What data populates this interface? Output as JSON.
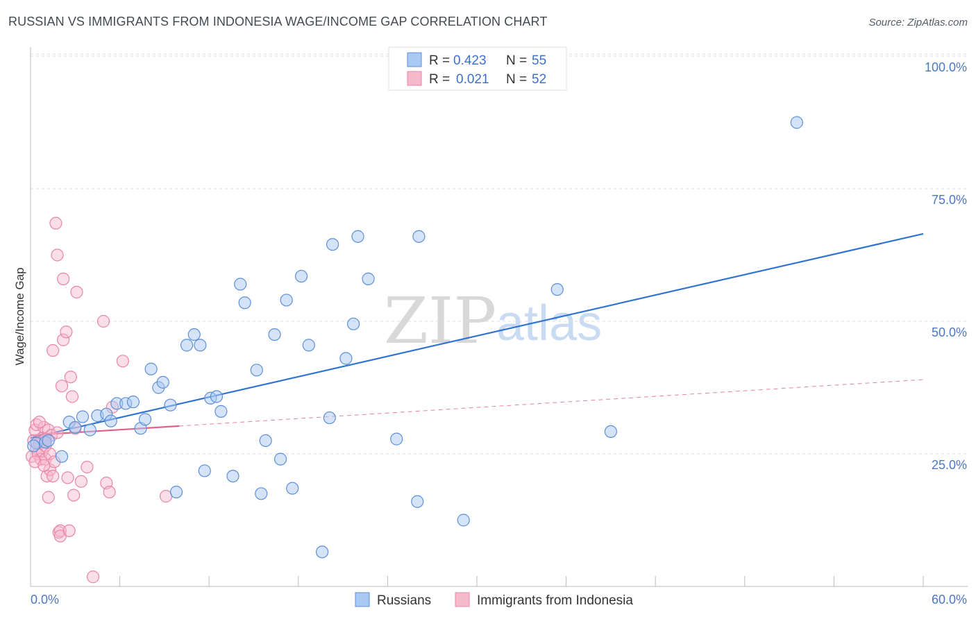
{
  "title": "RUSSIAN VS IMMIGRANTS FROM INDONESIA WAGE/INCOME GAP CORRELATION CHART",
  "source": "Source: ZipAtlas.com",
  "colors": {
    "blue_fill": "#a9c8f2",
    "blue_stroke": "#5b8fd8",
    "blue_line": "#2f74d0",
    "pink_fill": "#f6b8cb",
    "pink_stroke": "#e884a6",
    "pink_line": "#e0608c",
    "grid": "#dddddd",
    "tick_label": "#4a78c4"
  },
  "watermark": {
    "zip": "ZIP",
    "atlas": "atlas"
  },
  "legend": {
    "rows": [
      {
        "r_label": "R =",
        "r_value": "0.423",
        "n_label": "N =",
        "n_value": "55"
      },
      {
        "r_label": "R =",
        "r_value": "0.021",
        "n_label": "N =",
        "n_value": "52"
      }
    ]
  },
  "bottom_legend": {
    "series1": "Russians",
    "series2": "Immigrants from Indonesia"
  },
  "chart_data": {
    "type": "scatter",
    "title": "RUSSIAN VS IMMIGRANTS FROM INDONESIA WAGE/INCOME GAP CORRELATION CHART",
    "xlabel": "",
    "ylabel": "Wage/Income Gap",
    "xlim": [
      0,
      60
    ],
    "ylim": [
      0,
      105
    ],
    "x_tick_labels": [
      "0.0%",
      "60.0%"
    ],
    "y_ticks": [
      25,
      50,
      75,
      100
    ],
    "y_tick_labels": [
      "25.0%",
      "50.0%",
      "75.0%",
      "100.0%"
    ],
    "grid": true,
    "legend_position": "top-center",
    "series": [
      {
        "name": "Russians",
        "r": 0.423,
        "n": 55,
        "trend": {
          "x": [
            0,
            60
          ],
          "y": [
            28.0,
            66.5
          ],
          "style": "solid"
        },
        "points": [
          [
            0.4,
            27.0
          ],
          [
            1.0,
            27.2
          ],
          [
            1.2,
            27.5
          ],
          [
            2.1,
            24.5
          ],
          [
            2.6,
            31.0
          ],
          [
            3.0,
            30.0
          ],
          [
            3.5,
            32.0
          ],
          [
            4.0,
            29.5
          ],
          [
            4.5,
            32.2
          ],
          [
            5.1,
            32.5
          ],
          [
            5.4,
            31.2
          ],
          [
            5.8,
            34.5
          ],
          [
            6.4,
            34.5
          ],
          [
            6.9,
            34.8
          ],
          [
            7.4,
            29.8
          ],
          [
            7.7,
            31.5
          ],
          [
            8.1,
            41.0
          ],
          [
            8.6,
            37.5
          ],
          [
            8.9,
            38.5
          ],
          [
            9.4,
            34.2
          ],
          [
            9.8,
            17.8
          ],
          [
            10.5,
            45.5
          ],
          [
            11.0,
            47.5
          ],
          [
            11.4,
            45.5
          ],
          [
            11.7,
            21.8
          ],
          [
            12.1,
            35.5
          ],
          [
            12.5,
            35.8
          ],
          [
            12.8,
            33.0
          ],
          [
            13.6,
            20.8
          ],
          [
            14.1,
            57.0
          ],
          [
            14.4,
            53.5
          ],
          [
            15.2,
            40.8
          ],
          [
            15.5,
            17.5
          ],
          [
            15.8,
            27.5
          ],
          [
            16.4,
            47.5
          ],
          [
            16.8,
            24.0
          ],
          [
            17.2,
            54.0
          ],
          [
            17.6,
            18.5
          ],
          [
            18.2,
            58.5
          ],
          [
            18.7,
            45.5
          ],
          [
            19.6,
            6.5
          ],
          [
            20.1,
            31.8
          ],
          [
            20.3,
            64.5
          ],
          [
            21.2,
            43.0
          ],
          [
            21.7,
            49.5
          ],
          [
            22.0,
            66.0
          ],
          [
            22.7,
            58.0
          ],
          [
            24.6,
            27.8
          ],
          [
            26.0,
            16.0
          ],
          [
            26.1,
            66.0
          ],
          [
            29.1,
            12.5
          ],
          [
            35.4,
            56.0
          ],
          [
            39.0,
            29.2
          ],
          [
            51.5,
            87.5
          ],
          [
            0.2,
            26.5
          ]
        ]
      },
      {
        "name": "Immigrants from Indonesia",
        "r": 0.021,
        "n": 52,
        "trend": {
          "x": [
            0,
            60
          ],
          "y": [
            28.5,
            39.0
          ],
          "style": "solid-then-dashed",
          "solid_until_x": 10
        },
        "points": [
          [
            0.1,
            24.5
          ],
          [
            0.2,
            27.5
          ],
          [
            0.3,
            29.5
          ],
          [
            0.4,
            30.5
          ],
          [
            0.4,
            26.0
          ],
          [
            0.5,
            25.0
          ],
          [
            0.6,
            27.0
          ],
          [
            0.7,
            24.0
          ],
          [
            0.8,
            28.0
          ],
          [
            0.8,
            25.5
          ],
          [
            0.9,
            30.0
          ],
          [
            1.0,
            26.5
          ],
          [
            1.0,
            24.0
          ],
          [
            1.1,
            20.8
          ],
          [
            1.2,
            29.5
          ],
          [
            1.2,
            16.8
          ],
          [
            1.3,
            25.0
          ],
          [
            1.3,
            22.0
          ],
          [
            1.4,
            28.5
          ],
          [
            1.5,
            20.8
          ],
          [
            1.5,
            44.5
          ],
          [
            1.6,
            23.5
          ],
          [
            1.7,
            68.5
          ],
          [
            1.8,
            62.5
          ],
          [
            1.8,
            29.0
          ],
          [
            1.9,
            10.2
          ],
          [
            2.0,
            10.5
          ],
          [
            2.0,
            9.5
          ],
          [
            2.1,
            37.8
          ],
          [
            2.2,
            58.0
          ],
          [
            2.2,
            46.5
          ],
          [
            2.4,
            48.0
          ],
          [
            2.5,
            20.5
          ],
          [
            2.6,
            10.5
          ],
          [
            2.7,
            39.5
          ],
          [
            2.8,
            35.8
          ],
          [
            2.9,
            17.2
          ],
          [
            3.0,
            29.8
          ],
          [
            3.1,
            55.5
          ],
          [
            3.4,
            19.8
          ],
          [
            3.8,
            22.5
          ],
          [
            4.2,
            1.8
          ],
          [
            4.9,
            50.0
          ],
          [
            5.1,
            19.5
          ],
          [
            5.3,
            17.8
          ],
          [
            5.5,
            33.8
          ],
          [
            6.2,
            42.5
          ],
          [
            9.1,
            17.0
          ],
          [
            0.3,
            23.5
          ],
          [
            0.6,
            31.0
          ],
          [
            1.0,
            27.8
          ],
          [
            0.9,
            22.8
          ]
        ]
      }
    ]
  }
}
